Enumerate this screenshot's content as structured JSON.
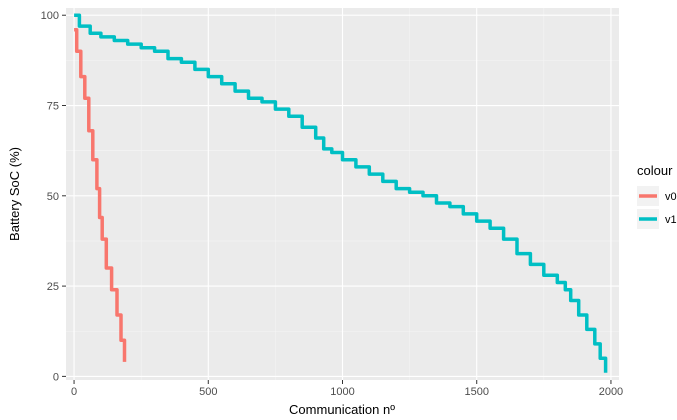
{
  "chart_data": {
    "type": "line",
    "title": "",
    "xlabel": "Communication nº",
    "ylabel": "Battery SoC (%)",
    "xlim": [
      -30,
      2030
    ],
    "ylim": [
      -1,
      102
    ],
    "x_ticks": [
      0,
      500,
      1000,
      1500,
      2000
    ],
    "x_tick_labels": [
      "0",
      "500",
      "1000",
      "1500",
      "2000"
    ],
    "y_ticks": [
      0,
      25,
      50,
      75,
      100
    ],
    "y_tick_labels": [
      "0",
      "25",
      "50",
      "75",
      "100"
    ],
    "grid": true,
    "legend": {
      "title": "colour",
      "position": "right"
    },
    "series": [
      {
        "name": "v0",
        "color": "#F8766D",
        "points": [
          [
            0,
            96
          ],
          [
            10,
            90
          ],
          [
            25,
            83
          ],
          [
            40,
            77
          ],
          [
            55,
            68
          ],
          [
            70,
            60
          ],
          [
            85,
            52
          ],
          [
            95,
            44
          ],
          [
            105,
            38
          ],
          [
            120,
            30
          ],
          [
            140,
            24
          ],
          [
            160,
            17
          ],
          [
            175,
            10
          ],
          [
            188,
            4
          ]
        ]
      },
      {
        "name": "v1",
        "color": "#00BFC4",
        "points": [
          [
            0,
            100
          ],
          [
            20,
            97
          ],
          [
            60,
            95
          ],
          [
            100,
            94
          ],
          [
            150,
            93
          ],
          [
            200,
            92
          ],
          [
            250,
            91
          ],
          [
            300,
            90
          ],
          [
            350,
            88
          ],
          [
            400,
            87
          ],
          [
            450,
            85
          ],
          [
            500,
            83
          ],
          [
            550,
            81
          ],
          [
            600,
            79
          ],
          [
            650,
            77
          ],
          [
            700,
            76
          ],
          [
            750,
            74
          ],
          [
            800,
            72
          ],
          [
            850,
            69
          ],
          [
            900,
            66
          ],
          [
            930,
            63
          ],
          [
            960,
            62
          ],
          [
            1000,
            60
          ],
          [
            1050,
            58
          ],
          [
            1100,
            56
          ],
          [
            1150,
            54
          ],
          [
            1200,
            52
          ],
          [
            1250,
            51
          ],
          [
            1300,
            50
          ],
          [
            1350,
            48
          ],
          [
            1400,
            47
          ],
          [
            1450,
            45
          ],
          [
            1500,
            43
          ],
          [
            1550,
            41
          ],
          [
            1600,
            38
          ],
          [
            1650,
            34
          ],
          [
            1700,
            31
          ],
          [
            1750,
            28
          ],
          [
            1800,
            26
          ],
          [
            1830,
            24
          ],
          [
            1850,
            21
          ],
          [
            1880,
            17
          ],
          [
            1910,
            13
          ],
          [
            1940,
            9
          ],
          [
            1960,
            5
          ],
          [
            1980,
            1
          ]
        ]
      }
    ]
  }
}
